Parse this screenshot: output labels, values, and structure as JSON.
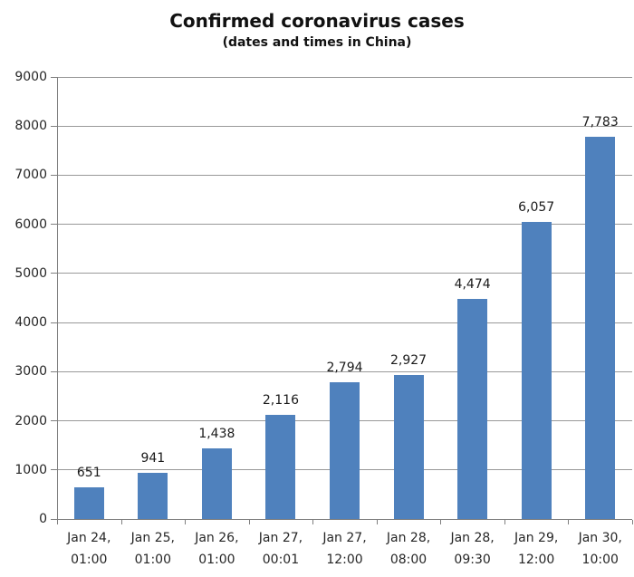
{
  "chart_data": {
    "type": "bar",
    "title": "Confirmed coronavirus cases",
    "subtitle": "(dates and times in China)",
    "categories": [
      [
        "Jan 24,",
        "01:00"
      ],
      [
        "Jan 25,",
        "01:00"
      ],
      [
        "Jan 26,",
        "01:00"
      ],
      [
        "Jan 27,",
        "00:01"
      ],
      [
        "Jan 27,",
        "12:00"
      ],
      [
        "Jan 28,",
        "08:00"
      ],
      [
        "Jan 28,",
        "09:30"
      ],
      [
        "Jan 29,",
        "12:00"
      ],
      [
        "Jan 30,",
        "10:00"
      ]
    ],
    "values": [
      651,
      941,
      1438,
      2116,
      2794,
      2927,
      4474,
      6057,
      7783
    ],
    "value_labels": [
      "651",
      "941",
      "1,438",
      "2,116",
      "2,794",
      "2,927",
      "4,474",
      "6,057",
      "7,783"
    ],
    "xlabel": "",
    "ylabel": "",
    "ylim": [
      0,
      9000
    ],
    "ytick_interval": 1000,
    "ytick_labels": [
      "0",
      "1000",
      "2000",
      "3000",
      "4000",
      "5000",
      "6000",
      "7000",
      "8000",
      "9000"
    ],
    "grid": true,
    "legend": "none"
  },
  "colors": {
    "bar": "#4f81bd",
    "gridline": "#999999",
    "axis": "#7f7f7f",
    "title_text": "#111111",
    "value_label_text": "#1a1a1a",
    "tick_text": "#262626",
    "background": "#ffffff"
  }
}
